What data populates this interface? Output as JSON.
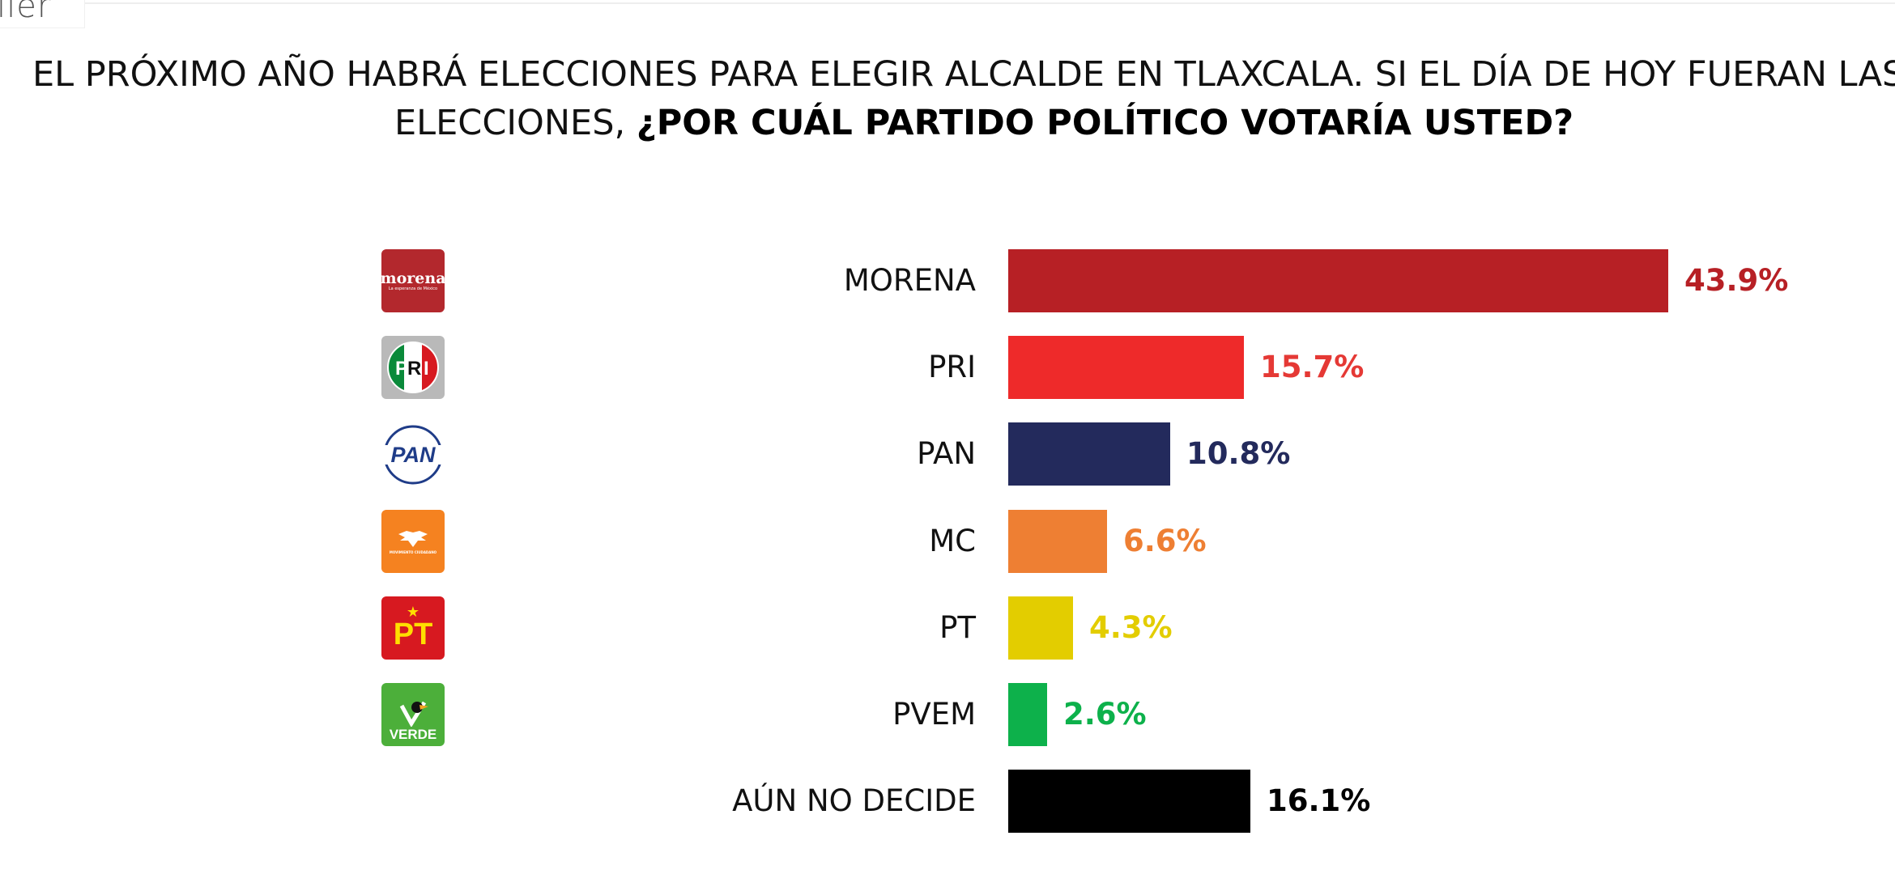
{
  "logo": {
    "wordmark": "ller"
  },
  "title": {
    "line1": "EL PRÓXIMO AÑO HABRÁ ELECCIONES PARA ELEGIR ALCALDE EN TLAXCALA. SI EL DÍA DE HOY FUERAN LAS",
    "line2_prefix": "ELECCIONES, ",
    "line2_bold": "¿POR CUÁL PARTIDO POLÍTICO VOTARÍA USTED?"
  },
  "party_logos": {
    "morena_main": "morena",
    "morena_tag": "La esperanza de México",
    "pri": "PRI",
    "pan": "PAN",
    "mc": "MOVIMIENTO CIUDADANO",
    "pt": "PT",
    "pvem": "VERDE"
  },
  "colors": {
    "morena": "#b72025",
    "pri": "#ee2a2a",
    "pan": "#232a5c",
    "mc": "#ee7f33",
    "pt": "#e3cd00",
    "pvem": "#0db14b",
    "undecided": "#000000"
  },
  "chart_data": {
    "type": "bar",
    "orientation": "horizontal",
    "title": "EL PRÓXIMO AÑO HABRÁ ELECCIONES PARA ELEGIR ALCALDE EN TLAXCALA. SI EL DÍA DE HOY FUERAN LAS ELECCIONES, ¿POR CUÁL PARTIDO POLÍTICO VOTARÍA USTED?",
    "categories": [
      "MORENA",
      "PRI",
      "PAN",
      "MC",
      "PT",
      "PVEM",
      "AÚN NO DECIDE"
    ],
    "values": [
      43.9,
      15.7,
      10.8,
      6.6,
      4.3,
      2.6,
      16.1
    ],
    "value_labels": [
      "43.9%",
      "15.7%",
      "10.8%",
      "6.6%",
      "4.3%",
      "2.6%",
      "16.1%"
    ],
    "value_label_colors": [
      "#b72025",
      "#e53935",
      "#232a5c",
      "#ee7f33",
      "#e3cd00",
      "#0db14b",
      "#000000"
    ],
    "bar_colors": [
      "#b72025",
      "#ee2a2a",
      "#232a5c",
      "#ee7f33",
      "#e3cd00",
      "#0db14b",
      "#000000"
    ],
    "xlabel": "",
    "ylabel": "",
    "grid": false,
    "legend": "none"
  }
}
